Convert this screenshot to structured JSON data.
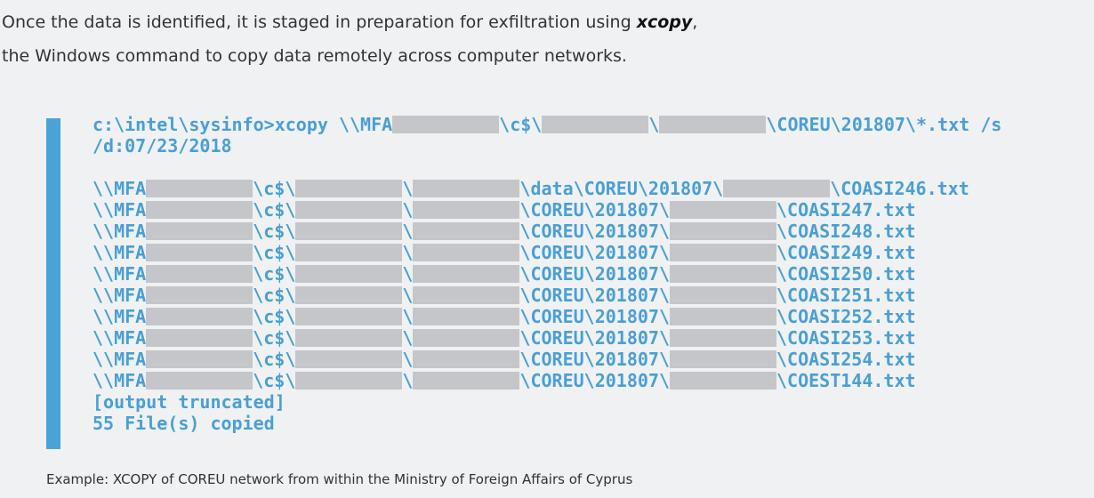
{
  "intro": {
    "text": "Once the data is identified, it is staged in preparation for exfiltration using ",
    "emphasis": "xcopy",
    "after": ",",
    "line2": "the Windows command to copy data remotely across computer networks."
  },
  "code": {
    "command": [
      [
        "c:\\intel\\sysinfo>xcopy \\\\MFA",
        "\\c$\\",
        "\\",
        "\\COREU\\201807\\*.txt /s"
      ],
      [
        "/d:07/23/2018"
      ]
    ],
    "output": [
      [
        "\\\\MFA",
        "\\c$\\",
        "\\",
        "\\data\\COREU\\201807\\",
        "\\COASI246.txt"
      ],
      [
        "\\\\MFA",
        "\\c$\\",
        "\\",
        "\\COREU\\201807\\",
        "\\COASI247.txt"
      ],
      [
        "\\\\MFA",
        "\\c$\\",
        "\\",
        "\\COREU\\201807\\",
        "\\COASI248.txt"
      ],
      [
        "\\\\MFA",
        "\\c$\\",
        "\\",
        "\\COREU\\201807\\",
        "\\COASI249.txt"
      ],
      [
        "\\\\MFA",
        "\\c$\\",
        "\\",
        "\\COREU\\201807\\",
        "\\COASI250.txt"
      ],
      [
        "\\\\MFA",
        "\\c$\\",
        "\\",
        "\\COREU\\201807\\",
        "\\COASI251.txt"
      ],
      [
        "\\\\MFA",
        "\\c$\\",
        "\\",
        "\\COREU\\201807\\",
        "\\COASI252.txt"
      ],
      [
        "\\\\MFA",
        "\\c$\\",
        "\\",
        "\\COREU\\201807\\",
        "\\COASI253.txt"
      ],
      [
        "\\\\MFA",
        "\\c$\\",
        "\\",
        "\\COREU\\201807\\",
        "\\COASI254.txt"
      ],
      [
        "\\\\MFA",
        "\\c$\\",
        "\\",
        "\\COREU\\201807\\",
        "\\COEST144.txt"
      ],
      [
        "[output truncated]"
      ],
      [
        "55 File(s) copied"
      ]
    ]
  },
  "caption": "Example: XCOPY of COREU network from within the Ministry of Foreign Affairs of Cyprus"
}
